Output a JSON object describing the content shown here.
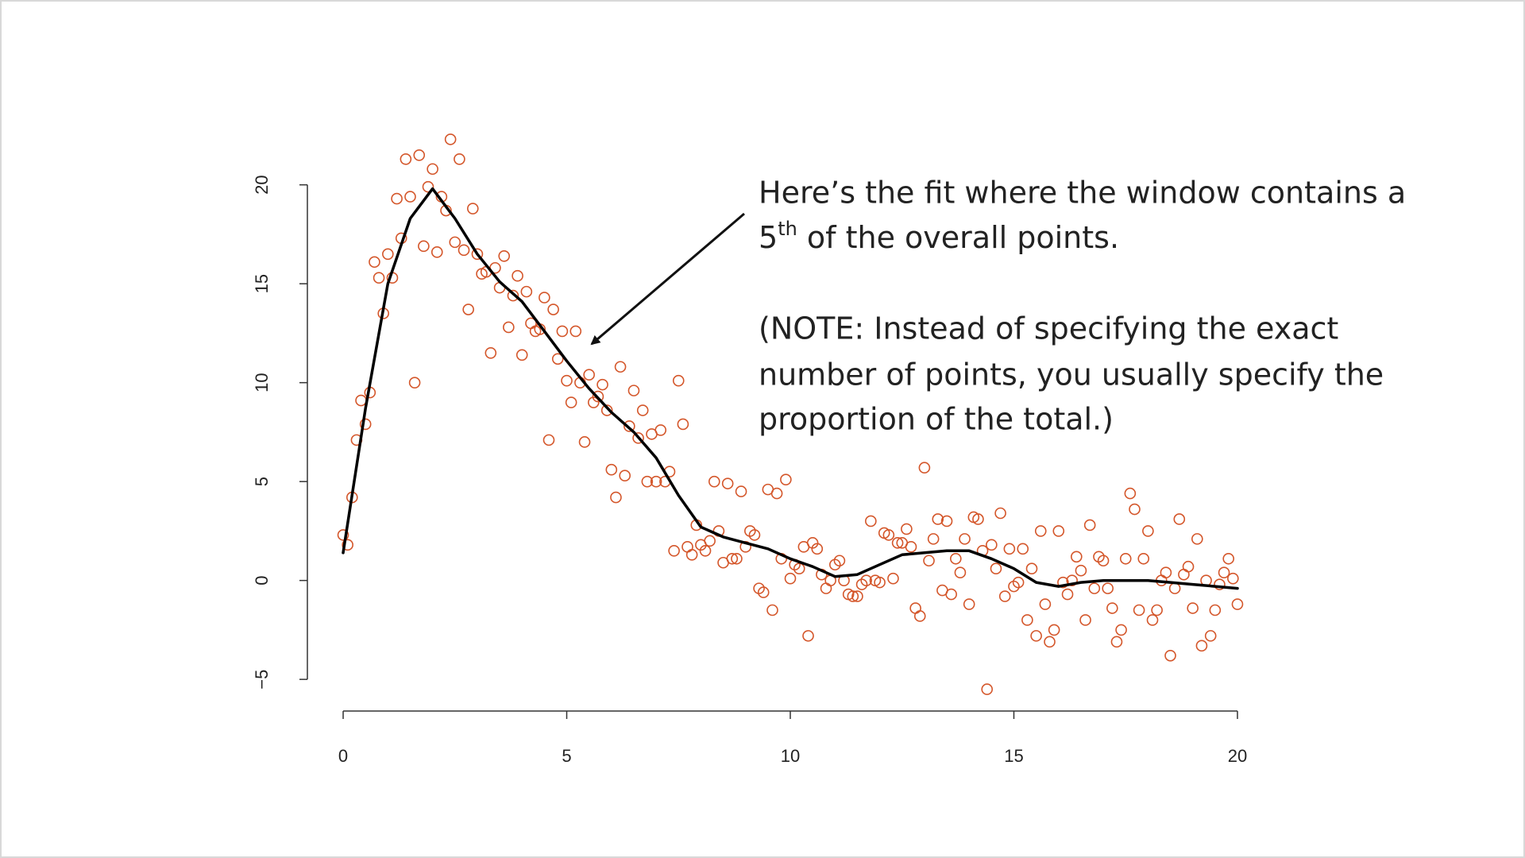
{
  "chart_data": {
    "type": "scatter",
    "xlim": [
      -0.8,
      20.8
    ],
    "ylim": [
      -6.6,
      23.4
    ],
    "xticks": [
      0,
      5,
      10,
      15,
      20
    ],
    "yticks": [
      {
        "value": -5,
        "label": "−5"
      },
      0,
      5,
      10,
      15,
      20
    ],
    "series": [
      {
        "style": "points",
        "color": "#d4562a",
        "x": [
          0,
          0.1,
          0.2,
          0.3,
          0.4,
          0.5,
          0.6,
          0.7,
          0.8,
          0.9,
          1,
          1.1,
          1.2,
          1.3,
          1.4,
          1.5,
          1.6,
          1.7,
          1.8,
          1.9,
          2,
          2.1,
          2.2,
          2.3,
          2.4,
          2.5,
          2.6,
          2.7,
          2.8,
          2.9,
          3,
          3.1,
          3.2,
          3.3,
          3.4,
          3.5,
          3.6,
          3.7,
          3.8,
          3.9,
          4,
          4.1,
          4.2,
          4.3,
          4.4,
          4.5,
          4.6,
          4.7,
          4.8,
          4.9,
          5,
          5.1,
          5.2,
          5.3,
          5.4,
          5.5,
          5.6,
          5.7,
          5.8,
          5.9,
          6,
          6.1,
          6.2,
          6.3,
          6.4,
          6.5,
          6.6,
          6.7,
          6.8,
          6.9,
          7,
          7.1,
          7.2,
          7.3,
          7.4,
          7.5,
          7.6,
          7.7,
          7.8,
          7.9,
          8,
          8.1,
          8.2,
          8.3,
          8.4,
          8.5,
          8.6,
          8.7,
          8.8,
          8.9,
          9,
          9.1,
          9.2,
          9.3,
          9.4,
          9.5,
          9.6,
          9.7,
          9.8,
          9.9,
          10,
          10.1,
          10.2,
          10.3,
          10.4,
          10.5,
          10.6,
          10.7,
          10.8,
          10.9,
          11,
          11.1,
          11.2,
          11.3,
          11.4,
          11.5,
          11.6,
          11.7,
          11.8,
          11.9,
          12,
          12.1,
          12.2,
          12.3,
          12.4,
          12.5,
          12.6,
          12.7,
          12.8,
          12.9,
          13,
          13.1,
          13.2,
          13.3,
          13.4,
          13.5,
          13.6,
          13.7,
          13.8,
          13.9,
          14,
          14.1,
          14.2,
          14.3,
          14.4,
          14.5,
          14.6,
          14.7,
          14.8,
          14.9,
          15,
          15.1,
          15.2,
          15.3,
          15.4,
          15.5,
          15.6,
          15.7,
          15.8,
          15.9,
          16,
          16.1,
          16.2,
          16.3,
          16.4,
          16.5,
          16.6,
          16.7,
          16.8,
          16.9,
          17,
          17.1,
          17.2,
          17.3,
          17.4,
          17.5,
          17.6,
          17.7,
          17.8,
          17.9,
          18,
          18.1,
          18.2,
          18.3,
          18.4,
          18.5,
          18.6,
          18.7,
          18.8,
          18.9,
          19,
          19.1,
          19.2,
          19.3,
          19.4,
          19.5,
          19.6,
          19.7,
          19.8,
          19.9,
          20
        ],
        "values": [
          2.3,
          1.8,
          4.2,
          7.1,
          9.1,
          7.9,
          9.5,
          16.1,
          15.3,
          13.5,
          16.5,
          15.3,
          19.3,
          17.3,
          21.3,
          19.4,
          10.0,
          21.5,
          16.9,
          19.9,
          20.8,
          16.6,
          19.4,
          18.7,
          22.3,
          17.1,
          21.3,
          16.7,
          13.7,
          18.8,
          16.5,
          15.5,
          15.6,
          11.5,
          15.8,
          14.8,
          16.4,
          12.8,
          14.4,
          15.4,
          11.4,
          14.6,
          13.0,
          12.6,
          12.7,
          14.3,
          7.1,
          13.7,
          11.2,
          12.6,
          10.1,
          9.0,
          12.6,
          10.0,
          7.0,
          10.4,
          9.0,
          9.3,
          9.9,
          8.6,
          5.6,
          4.2,
          10.8,
          5.3,
          7.8,
          9.6,
          7.2,
          8.6,
          5.0,
          7.4,
          5.0,
          7.6,
          5.0,
          5.5,
          1.5,
          10.1,
          7.9,
          1.7,
          1.3,
          2.8,
          1.8,
          1.5,
          2.0,
          5.0,
          2.5,
          0.9,
          4.9,
          1.1,
          1.1,
          4.5,
          1.7,
          2.5,
          2.3,
          -0.4,
          -0.6,
          4.6,
          -1.5,
          4.4,
          1.1,
          5.1,
          0.1,
          0.8,
          0.6,
          1.7,
          -2.8,
          1.9,
          1.6,
          0.3,
          -0.4,
          0.0,
          0.8,
          1.0,
          0.0,
          -0.7,
          -0.8,
          -0.8,
          -0.2,
          0.0,
          3.0,
          0.0,
          -0.1,
          2.4,
          2.3,
          0.1,
          1.9,
          1.9,
          2.6,
          1.7,
          -1.4,
          -1.8,
          5.7,
          1.0,
          2.1,
          3.1,
          -0.5,
          3.0,
          -0.7,
          1.1,
          0.4,
          2.1,
          -1.2,
          3.2,
          3.1,
          1.5,
          -5.5,
          1.8,
          0.6,
          3.4,
          -0.8,
          1.6,
          -0.3,
          -0.1,
          1.6,
          -2.0,
          0.6,
          -2.8,
          2.5,
          -1.2,
          -3.1,
          -2.5,
          2.5,
          -0.1,
          -0.7,
          0.0,
          1.2,
          0.5,
          -2.0,
          2.8,
          -0.4,
          1.2,
          1.0,
          -0.4,
          -1.4,
          -3.1,
          -2.5,
          1.1,
          4.4,
          3.6,
          -1.5,
          1.1,
          2.5,
          -2.0,
          -1.5,
          0.0,
          0.4,
          -3.8,
          -0.4,
          3.1,
          0.3,
          0.7,
          -1.4,
          2.1,
          -3.3,
          0.0,
          -2.8,
          -1.5,
          -0.2,
          0.4,
          1.1,
          0.1,
          -1.2
        ]
      },
      {
        "style": "line",
        "color": "#000000",
        "x": [
          0,
          0.5,
          1,
          1.5,
          2,
          2.5,
          3,
          3.5,
          4,
          4.5,
          5,
          5.5,
          6,
          6.5,
          7,
          7.5,
          8,
          8.5,
          9,
          9.5,
          10,
          10.5,
          11,
          11.5,
          12,
          12.5,
          13,
          13.5,
          14,
          14.5,
          15,
          15.5,
          16,
          16.5,
          17,
          17.5,
          18,
          18.5,
          19,
          19.5,
          20
        ],
        "values": [
          1.4,
          8.7,
          15,
          18.3,
          19.8,
          18.3,
          16.5,
          15.1,
          14.1,
          12.6,
          11.1,
          9.7,
          8.5,
          7.5,
          6.2,
          4.3,
          2.7,
          2.2,
          1.9,
          1.6,
          1.1,
          0.7,
          0.2,
          0.3,
          0.8,
          1.3,
          1.4,
          1.5,
          1.5,
          1.1,
          0.6,
          -0.1,
          -0.3,
          -0.1,
          0,
          0,
          0,
          -0.1,
          -0.2,
          -0.3,
          -0.4
        ]
      }
    ],
    "annotation": {
      "line1": "Here’s the fit where the window contains a",
      "line2": {
        "base": "5",
        "sup": "th",
        "rest": " of the overall points."
      },
      "note": [
        "(NOTE: Instead of specifying the exact",
        "number of points, you usually specify the",
        "proportion of the total.)"
      ]
    }
  }
}
